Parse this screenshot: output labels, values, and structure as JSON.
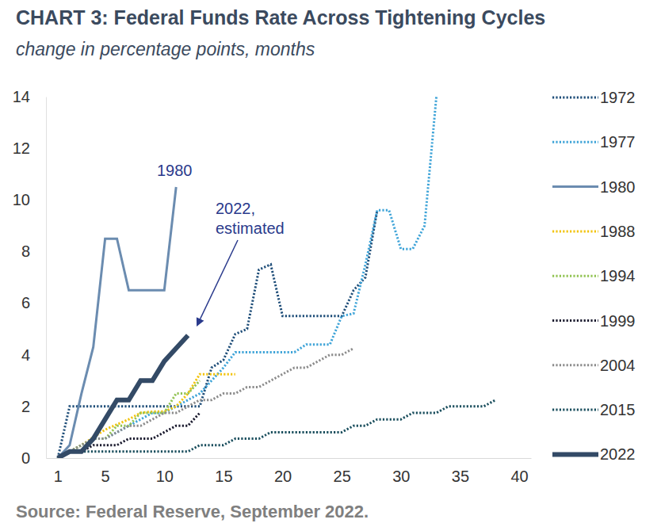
{
  "chart_data": {
    "type": "line",
    "title": "CHART 3: Federal Funds Rate Across Tightening Cycles",
    "subtitle": "change in percentage points, months",
    "source": "Source: Federal Reserve, September 2022.",
    "annotations": [
      {
        "lines": [
          "1980"
        ]
      },
      {
        "lines": [
          "2022,",
          "estimated"
        ]
      }
    ],
    "x": [
      1,
      2,
      3,
      4,
      5,
      6,
      7,
      8,
      9,
      10,
      11,
      12,
      13,
      14,
      15,
      16,
      17,
      18,
      19,
      20,
      21,
      22,
      23,
      24,
      25,
      26,
      27,
      28,
      29,
      30,
      31,
      32,
      33,
      34,
      35,
      36,
      37,
      38
    ],
    "xlim": [
      0,
      41
    ],
    "xticks": [
      1,
      5,
      10,
      15,
      20,
      25,
      30,
      35,
      40
    ],
    "ylim": [
      0,
      14
    ],
    "yticks": [
      0,
      2,
      4,
      6,
      8,
      10,
      12,
      14
    ],
    "grid": false,
    "legend": "right",
    "series": [
      {
        "name": "1972",
        "color": "#1f4e79",
        "line_style": "dotted",
        "values": [
          0,
          2,
          2,
          2,
          2,
          2,
          2,
          2,
          2,
          2,
          2,
          2,
          2,
          3.5,
          3.8,
          4.8,
          5,
          7.3,
          7.5,
          5.5,
          5.5,
          5.5,
          5.5,
          5.5,
          5.5,
          6.5,
          7,
          9.6,
          null,
          null,
          null,
          null,
          null,
          null,
          null,
          null,
          null,
          null
        ]
      },
      {
        "name": "1977",
        "color": "#3fa4d8",
        "line_style": "dotted",
        "values": [
          0,
          0.25,
          0.5,
          0.75,
          0.75,
          1,
          1.25,
          1.5,
          1.75,
          1.75,
          2,
          2.25,
          2.5,
          3,
          3.5,
          4.1,
          4.1,
          4.1,
          4.1,
          4.1,
          4.1,
          4.4,
          4.4,
          4.4,
          5.5,
          5.6,
          7.5,
          9.6,
          9.6,
          8.1,
          8.1,
          9,
          14,
          null,
          null,
          null,
          null,
          null
        ]
      },
      {
        "name": "1980",
        "color": "#6b8cb0",
        "line_style": "solid",
        "values": [
          0,
          0.5,
          2.5,
          4.3,
          8.5,
          8.5,
          6.5,
          6.5,
          6.5,
          6.5,
          10.5,
          null,
          null,
          null,
          null,
          null,
          null,
          null,
          null,
          null,
          null,
          null,
          null,
          null,
          null,
          null,
          null,
          null,
          null,
          null,
          null,
          null,
          null,
          null,
          null,
          null,
          null,
          null
        ]
      },
      {
        "name": "1988",
        "color": "#f2c40f",
        "line_style": "dotted",
        "values": [
          0,
          0.25,
          0.5,
          0.8,
          1.1,
          1.3,
          1.5,
          1.75,
          1.8,
          1.8,
          2,
          2.5,
          3.25,
          3.25,
          3.25,
          3.25,
          null,
          null,
          null,
          null,
          null,
          null,
          null,
          null,
          null,
          null,
          null,
          null,
          null,
          null,
          null,
          null,
          null,
          null,
          null,
          null,
          null,
          null
        ]
      },
      {
        "name": "1994",
        "color": "#92c353",
        "line_style": "dotted",
        "values": [
          0,
          0.25,
          0.5,
          0.75,
          0.75,
          1.25,
          1.25,
          1.75,
          1.75,
          1.75,
          2.5,
          2.5,
          3,
          null,
          null,
          null,
          null,
          null,
          null,
          null,
          null,
          null,
          null,
          null,
          null,
          null,
          null,
          null,
          null,
          null,
          null,
          null,
          null,
          null,
          null,
          null,
          null,
          null
        ]
      },
      {
        "name": "1999",
        "color": "#1a1a2e",
        "line_style": "dotted",
        "values": [
          0,
          0.25,
          0.25,
          0.5,
          0.5,
          0.5,
          0.75,
          0.75,
          0.75,
          1,
          1.25,
          1.25,
          1.75,
          null,
          null,
          null,
          null,
          null,
          null,
          null,
          null,
          null,
          null,
          null,
          null,
          null,
          null,
          null,
          null,
          null,
          null,
          null,
          null,
          null,
          null,
          null,
          null,
          null
        ]
      },
      {
        "name": "2004",
        "color": "#8c8c8c",
        "line_style": "dotted",
        "values": [
          0,
          0.25,
          0.5,
          0.75,
          0.75,
          1,
          1.25,
          1.25,
          1.5,
          1.75,
          1.75,
          2,
          2.25,
          2.25,
          2.5,
          2.5,
          2.75,
          2.75,
          3,
          3.25,
          3.5,
          3.5,
          3.75,
          4,
          4,
          4.25,
          null,
          null,
          null,
          null,
          null,
          null,
          null,
          null,
          null,
          null,
          null,
          null
        ]
      },
      {
        "name": "2015",
        "color": "#1b4f5e",
        "line_style": "dotted",
        "values": [
          0,
          0.25,
          0.25,
          0.25,
          0.25,
          0.25,
          0.25,
          0.25,
          0.25,
          0.25,
          0.25,
          0.25,
          0.5,
          0.5,
          0.5,
          0.75,
          0.75,
          0.75,
          1,
          1,
          1,
          1,
          1,
          1,
          1,
          1.25,
          1.25,
          1.5,
          1.5,
          1.5,
          1.75,
          1.75,
          1.75,
          2,
          2,
          2,
          2,
          2.25
        ]
      },
      {
        "name": "2022",
        "color": "#334a66",
        "line_style": "thick",
        "values": [
          0,
          0.25,
          0.25,
          0.75,
          1.5,
          2.25,
          2.25,
          3,
          3,
          3.75,
          4.25,
          4.75,
          null,
          null,
          null,
          null,
          null,
          null,
          null,
          null,
          null,
          null,
          null,
          null,
          null,
          null,
          null,
          null,
          null,
          null,
          null,
          null,
          null,
          null,
          null,
          null,
          null,
          null
        ]
      }
    ]
  }
}
